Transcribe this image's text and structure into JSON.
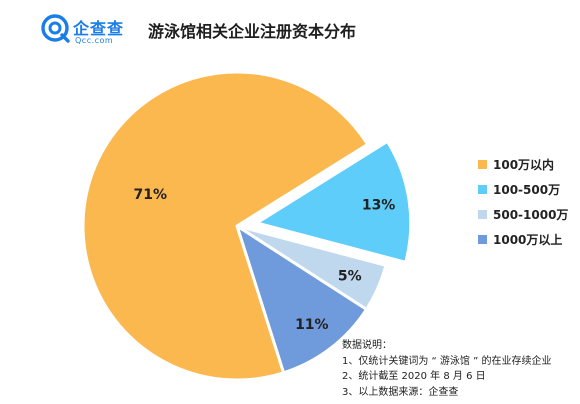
{
  "brand": {
    "name": "企查查",
    "domain": "Qcc.com",
    "color": "#1a7ee8"
  },
  "title": "游泳馆相关企业注册资本分布",
  "chart_data": {
    "type": "pie",
    "title": "游泳馆相关企业注册资本分布",
    "legend_position": "right",
    "value_unit": "%",
    "slices": [
      {
        "label": "100万以内",
        "value": 71,
        "data_label": "71%",
        "color": "#fbb84f",
        "exploded": false
      },
      {
        "label": "100-500万",
        "value": 13,
        "data_label": "13%",
        "color": "#5ecdf9",
        "exploded": true
      },
      {
        "label": "500-1000万",
        "value": 5,
        "data_label": "5%",
        "color": "#bfd8ee",
        "exploded": false
      },
      {
        "label": "1000万以上",
        "value": 11,
        "data_label": "11%",
        "color": "#6f9adb",
        "exploded": false
      }
    ]
  },
  "note": {
    "heading": "数据说明：",
    "lines": [
      "1、仅统计关键词为 “ 游泳馆 ” 的在业存续企业",
      "2、统计截至 2020 年 8 月 6 日",
      "3、以上数据来源：企查查"
    ]
  }
}
